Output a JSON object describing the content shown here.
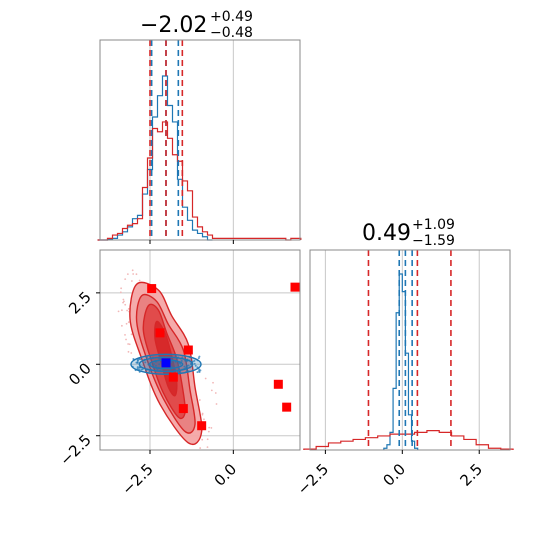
{
  "chart_data": [
    {
      "type": "histogram",
      "panel": "top-left marginal",
      "title_value": "−2.02",
      "title_err_plus": "+0.49",
      "title_err_minus": "−0.48",
      "xlim": [
        -4.0,
        2.0
      ],
      "grid": true,
      "series": [
        {
          "color": "#1f77b4",
          "bin_centers": [
            -4.0,
            -3.85,
            -3.7,
            -3.55,
            -3.4,
            -3.25,
            -3.1,
            -2.95,
            -2.8,
            -2.65,
            -2.5,
            -2.35,
            -2.2,
            -2.05,
            -1.9,
            -1.75,
            -1.6,
            -1.45,
            -1.3,
            -1.15,
            -1.0,
            -0.85,
            -0.7
          ],
          "heights": [
            0,
            0,
            0.005,
            0.01,
            0.03,
            0.05,
            0.08,
            0.13,
            0.15,
            0.28,
            0.43,
            0.75,
            0.88,
            1.0,
            0.82,
            0.72,
            0.37,
            0.2,
            0.12,
            0.06,
            0.04,
            0.02,
            0
          ]
        },
        {
          "color": "#d62728",
          "bin_centers": [
            -4.0,
            -3.85,
            -3.7,
            -3.55,
            -3.4,
            -3.25,
            -3.1,
            -2.95,
            -2.8,
            -2.65,
            -2.5,
            -2.35,
            -2.2,
            -2.05,
            -1.9,
            -1.75,
            -1.6,
            -1.45,
            -1.3,
            -1.15,
            -1.0,
            -0.85,
            -0.7,
            -0.55,
            1.35,
            1.5,
            1.65,
            1.8,
            1.95
          ],
          "heights": [
            0,
            0,
            0.01,
            0.03,
            0.04,
            0.07,
            0.09,
            0.1,
            0.13,
            0.32,
            0.5,
            0.68,
            0.66,
            0.72,
            0.62,
            0.52,
            0.48,
            0.36,
            0.3,
            0.14,
            0.08,
            0.05,
            0.03,
            0.01,
            0.01,
            0.01,
            0,
            0.01,
            0.01
          ]
        }
      ],
      "quantile_lines": [
        {
          "color": "#1f77b4",
          "x": [
            -2.45,
            -2.02,
            -1.65
          ]
        },
        {
          "color": "#d62728",
          "x": [
            -2.5,
            -2.02,
            -1.53
          ]
        }
      ]
    },
    {
      "type": "contour",
      "panel": "bottom-left 2D",
      "xlim": [
        -4.0,
        2.0
      ],
      "ylim": [
        -3.0,
        4.0
      ],
      "xticks": [
        -2.5,
        0.0
      ],
      "xtick_labels": [
        "−2.5",
        "0.0"
      ],
      "yticks": [
        -2.5,
        0.0,
        2.5
      ],
      "ytick_labels": [
        "−2.5",
        "0.0",
        "2.5"
      ],
      "grid": true,
      "red_levels": [
        {
          "fill": "#f4a6a6",
          "points": [
            [
              -2.9,
              2.8
            ],
            [
              -2.25,
              2.6
            ],
            [
              -1.85,
              1.7
            ],
            [
              -1.35,
              0.7
            ],
            [
              -1.15,
              -0.8
            ],
            [
              -0.95,
              -2.35
            ],
            [
              -1.35,
              -2.75
            ],
            [
              -2.2,
              -1.4
            ],
            [
              -2.75,
              0.2
            ],
            [
              -3.1,
              1.6
            ]
          ]
        },
        {
          "fill": "#e88080",
          "points": [
            [
              -2.75,
              2.4
            ],
            [
              -2.3,
              2.2
            ],
            [
              -1.95,
              1.4
            ],
            [
              -1.5,
              0.5
            ],
            [
              -1.3,
              -0.9
            ],
            [
              -1.15,
              -2.1
            ],
            [
              -1.45,
              -2.35
            ],
            [
              -2.1,
              -1.2
            ],
            [
              -2.6,
              0.2
            ],
            [
              -2.9,
              1.5
            ]
          ]
        },
        {
          "fill": "#e04848",
          "points": [
            [
              -2.55,
              2.05
            ],
            [
              -2.25,
              1.9
            ],
            [
              -2.0,
              1.1
            ],
            [
              -1.7,
              0.2
            ],
            [
              -1.5,
              -1.0
            ],
            [
              -1.45,
              -1.7
            ],
            [
              -1.65,
              -1.85
            ],
            [
              -2.1,
              -1.0
            ],
            [
              -2.45,
              0.1
            ],
            [
              -2.7,
              1.2
            ]
          ]
        },
        {
          "fill": "#d62728",
          "points": [
            [
              -2.3,
              1.5
            ],
            [
              -2.05,
              1.1
            ],
            [
              -1.85,
              0.3
            ],
            [
              -1.7,
              -0.6
            ],
            [
              -1.75,
              -1.1
            ],
            [
              -1.95,
              -0.8
            ],
            [
              -2.15,
              0.0
            ],
            [
              -2.35,
              0.9
            ]
          ]
        }
      ],
      "blue_levels": [
        {
          "stroke": "#1f77b4",
          "cx": -2.02,
          "cy": 0.0,
          "rx": 1.05,
          "ry": 0.35
        },
        {
          "stroke": "#1f77b4",
          "cx": -2.02,
          "cy": 0.0,
          "rx": 0.8,
          "ry": 0.25
        },
        {
          "stroke": "#1f77b4",
          "cx": -2.02,
          "cy": 0.0,
          "rx": 0.5,
          "ry": 0.15
        }
      ],
      "red_markers": [
        [
          -2.45,
          2.65
        ],
        [
          -2.2,
          1.1
        ],
        [
          -1.35,
          0.5
        ],
        [
          -1.8,
          -0.45
        ],
        [
          -1.5,
          -1.55
        ],
        [
          -0.95,
          -2.15
        ],
        [
          1.35,
          -0.7
        ],
        [
          1.6,
          -1.5
        ],
        [
          1.85,
          2.7
        ]
      ],
      "blue_marker": [
        -2.02,
        0.05
      ]
    },
    {
      "type": "histogram",
      "panel": "bottom-right marginal",
      "title_value": "0.49",
      "title_err_plus": "+1.09",
      "title_err_minus": "−1.59",
      "xlim": [
        -3.0,
        3.5
      ],
      "xticks": [
        -2.5,
        0.0,
        2.5
      ],
      "xtick_labels": [
        "−2.5",
        "0.0",
        "2.5"
      ],
      "grid": true,
      "series": [
        {
          "color": "#1f77b4",
          "bin_centers": [
            -0.55,
            -0.45,
            -0.35,
            -0.25,
            -0.15,
            -0.05,
            0.05,
            0.15,
            0.25,
            0.35,
            0.45
          ],
          "heights": [
            0.01,
            0.03,
            0.1,
            0.35,
            0.78,
            1.0,
            0.9,
            0.55,
            0.2,
            0.05,
            0.01
          ]
        },
        {
          "color": "#d62728",
          "bin_centers": [
            -3.0,
            -2.6,
            -2.2,
            -1.8,
            -1.4,
            -1.0,
            -0.6,
            -0.2,
            0.2,
            0.6,
            1.0,
            1.4,
            1.8,
            2.2,
            2.6,
            3.0,
            3.4
          ],
          "heights": [
            0.005,
            0.02,
            0.04,
            0.05,
            0.06,
            0.07,
            0.08,
            0.09,
            0.09,
            0.1,
            0.11,
            0.1,
            0.08,
            0.06,
            0.03,
            0.01,
            0.005
          ]
        }
      ],
      "quantile_lines": [
        {
          "color": "#1f77b4",
          "x": [
            -0.1,
            0.1,
            0.32
          ]
        },
        {
          "color": "#d62728",
          "x": [
            -1.1,
            0.49,
            1.58
          ]
        }
      ]
    }
  ]
}
